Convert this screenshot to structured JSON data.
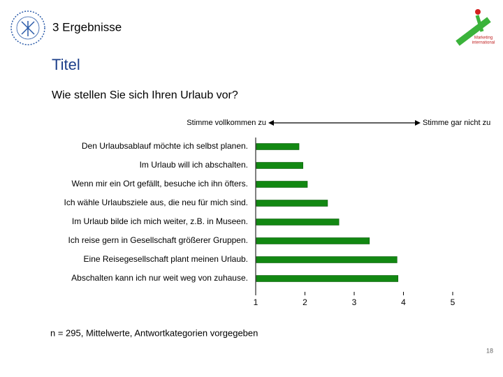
{
  "header": "3 Ergebnisse",
  "logo_text": [
    "Marketing",
    "international"
  ],
  "slide_title": "Titel",
  "page_number": "18",
  "chart_data": {
    "type": "bar",
    "orientation": "horizontal",
    "title": "Wie stellen Sie sich Ihren Urlaub vor?",
    "annotations": [
      "Stimme vollkommen zu",
      "Stimme gar nicht zu"
    ],
    "categories": [
      "Den Urlaubsablauf möchte ich selbst planen.",
      "Im Urlaub will ich abschalten.",
      "Wenn mir ein Ort gefällt, besuche ich ihn öfters.",
      "Ich wähle Urlaubsziele aus, die neu für mich sind.",
      "Im Urlaub bilde ich mich weiter, z.B. in Museen.",
      "Ich reise gern in Gesellschaft größerer Gruppen.",
      "Eine Reisegesellschaft plant meinen Urlaub.",
      "Abschalten kann ich nur weit weg von zuhause."
    ],
    "values": [
      1.88,
      1.96,
      2.05,
      2.46,
      2.69,
      3.31,
      3.87,
      3.89
    ],
    "color": "#128812",
    "xlim": [
      1,
      5
    ],
    "xticks": [
      1,
      2,
      3,
      4,
      5
    ],
    "note": "n = 295, Mittelwerte, Antwortkategorien vorgegeben"
  }
}
